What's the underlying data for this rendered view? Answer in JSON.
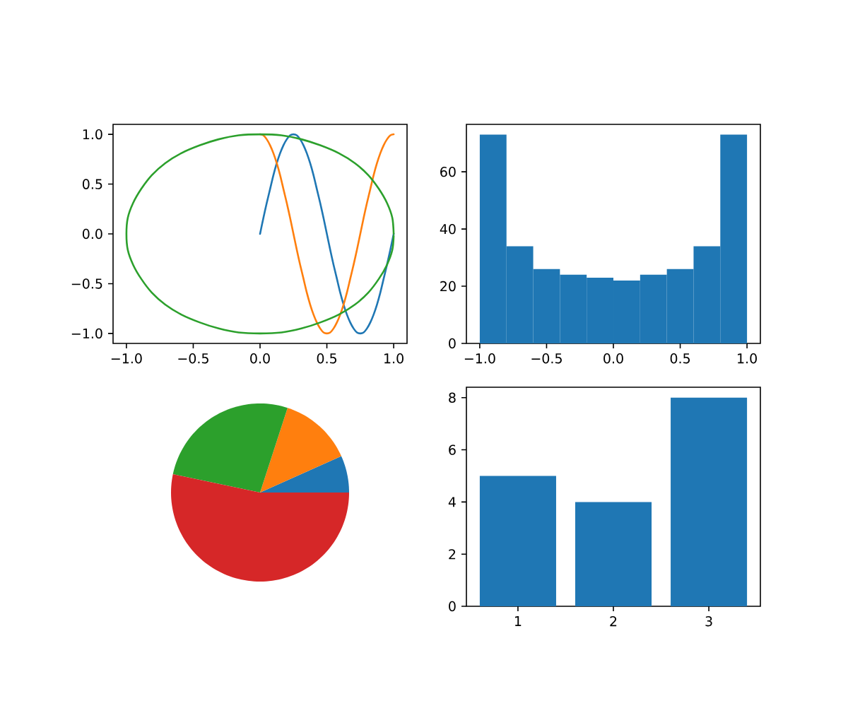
{
  "chart_data": [
    {
      "type": "line",
      "x": [
        0,
        0.025,
        0.05,
        0.075,
        0.1,
        0.125,
        0.15,
        0.175,
        0.2,
        0.225,
        0.25,
        0.275,
        0.3,
        0.325,
        0.35,
        0.375,
        0.4,
        0.425,
        0.45,
        0.475,
        0.5,
        0.525,
        0.55,
        0.575,
        0.6,
        0.625,
        0.65,
        0.675,
        0.7,
        0.725,
        0.75,
        0.775,
        0.8,
        0.825,
        0.85,
        0.875,
        0.9,
        0.925,
        0.95,
        0.975,
        1
      ],
      "series": [
        {
          "color": "#1f77b4",
          "values": [
            0,
            0.16,
            0.31,
            0.45,
            0.59,
            0.71,
            0.81,
            0.89,
            0.95,
            0.99,
            1,
            0.99,
            0.95,
            0.89,
            0.81,
            0.71,
            0.59,
            0.45,
            0.31,
            0.16,
            0,
            -0.16,
            -0.31,
            -0.45,
            -0.59,
            -0.71,
            -0.81,
            -0.89,
            -0.95,
            -0.99,
            -1,
            -0.99,
            -0.95,
            -0.89,
            -0.81,
            -0.71,
            -0.59,
            -0.45,
            -0.31,
            -0.16,
            0
          ]
        },
        {
          "color": "#ff7f0e",
          "values": [
            1,
            0.99,
            0.95,
            0.89,
            0.81,
            0.71,
            0.59,
            0.45,
            0.31,
            0.16,
            0,
            -0.16,
            -0.31,
            -0.45,
            -0.59,
            -0.71,
            -0.81,
            -0.89,
            -0.95,
            -0.99,
            -1,
            -0.99,
            -0.95,
            -0.89,
            -0.81,
            -0.71,
            -0.59,
            -0.45,
            -0.31,
            -0.16,
            0,
            0.16,
            0.31,
            0.45,
            0.59,
            0.71,
            0.81,
            0.89,
            0.95,
            0.99,
            1
          ]
        },
        {
          "color": "#2ca02c",
          "x": [
            1,
            0.99,
            0.95,
            0.89,
            0.81,
            0.71,
            0.59,
            0.45,
            0.31,
            0.16,
            0,
            -0.16,
            -0.31,
            -0.45,
            -0.59,
            -0.71,
            -0.81,
            -0.89,
            -0.95,
            -0.99,
            -1,
            -0.99,
            -0.95,
            -0.89,
            -0.81,
            -0.71,
            -0.59,
            -0.45,
            -0.31,
            -0.16,
            0,
            0.16,
            0.31,
            0.45,
            0.59,
            0.71,
            0.81,
            0.89,
            0.95,
            0.99,
            1
          ],
          "values": [
            0,
            0.16,
            0.31,
            0.45,
            0.59,
            0.71,
            0.81,
            0.89,
            0.95,
            0.99,
            1,
            0.99,
            0.95,
            0.89,
            0.81,
            0.71,
            0.59,
            0.45,
            0.31,
            0.16,
            0,
            -0.16,
            -0.31,
            -0.45,
            -0.59,
            -0.71,
            -0.81,
            -0.89,
            -0.95,
            -0.99,
            -1,
            -0.99,
            -0.95,
            -0.89,
            -0.81,
            -0.71,
            -0.59,
            -0.45,
            -0.31,
            -0.16,
            -0.02
          ]
        }
      ],
      "xlim": [
        -1.1,
        1.1
      ],
      "ylim": [
        -1.1,
        1.1
      ],
      "xticks": [
        {
          "value": -1,
          "label": "−1.0"
        },
        {
          "value": -0.5,
          "label": "−0.5"
        },
        {
          "value": 0,
          "label": "0.0"
        },
        {
          "value": 0.5,
          "label": "0.5"
        },
        {
          "value": 1,
          "label": "1.0"
        }
      ],
      "yticks": [
        {
          "value": -1,
          "label": "−1.0"
        },
        {
          "value": -0.5,
          "label": "−0.5"
        },
        {
          "value": 0,
          "label": "0.0"
        },
        {
          "value": 0.5,
          "label": "0.5"
        },
        {
          "value": 1,
          "label": "1.0"
        }
      ]
    },
    {
      "type": "histogram",
      "bins": [
        -1,
        -0.8,
        -0.6,
        -0.4,
        -0.2,
        0,
        0.2,
        0.4,
        0.6,
        0.8,
        1
      ],
      "values": [
        73,
        34,
        26,
        24,
        23,
        22,
        24,
        26,
        34,
        73
      ],
      "color": "#1f77b4",
      "xlim": [
        -1.1,
        1.1
      ],
      "ylim": [
        0,
        76.6
      ],
      "xticks": [
        {
          "value": -1,
          "label": "−1.0"
        },
        {
          "value": -0.5,
          "label": "−0.5"
        },
        {
          "value": 0,
          "label": "0.0"
        },
        {
          "value": 0.5,
          "label": "0.5"
        },
        {
          "value": 1,
          "label": "1.0"
        }
      ],
      "yticks": [
        0,
        20,
        40,
        60
      ]
    },
    {
      "type": "pie",
      "categories": [
        null,
        null,
        null,
        null
      ],
      "values": [
        6.7,
        13.3,
        26.7,
        53.3
      ],
      "colors": [
        "#1f77b4",
        "#ff7f0e",
        "#2ca02c",
        "#d62728"
      ]
    },
    {
      "type": "bar",
      "x": [
        1,
        2,
        3
      ],
      "values": [
        5,
        4,
        8
      ],
      "color": "#1f77b4",
      "xlim": [
        0.46,
        3.54
      ],
      "ylim": [
        0,
        8.4
      ],
      "xticks": [
        1,
        2,
        3
      ],
      "yticks": [
        0,
        2,
        4,
        6,
        8
      ]
    }
  ]
}
